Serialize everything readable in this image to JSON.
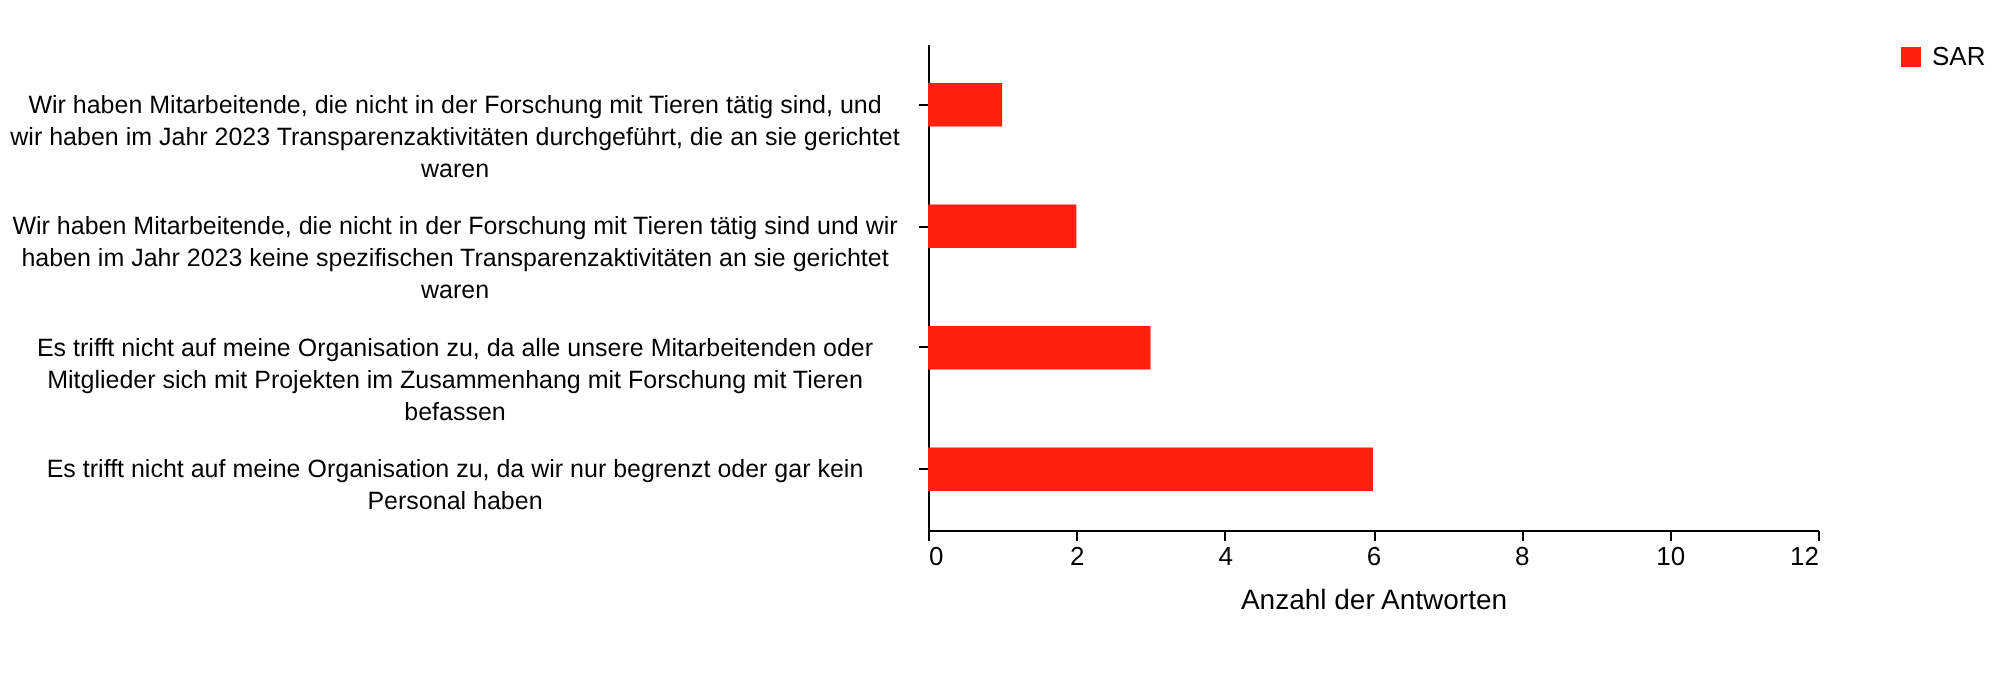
{
  "chart_data": {
    "type": "bar",
    "orientation": "horizontal",
    "categories": [
      "Wir haben Mitarbeitende, die nicht in der Forschung mit Tieren  tätig sind, und wir haben im Jahr 2023 Transparenzaktivitäten durchgeführt, die an sie gerichtet waren",
      "Wir haben Mitarbeitende, die nicht in der Forschung mit Tieren tätig sind und wir haben im Jahr 2023 keine spezifischen Transparenzaktivitäten an sie gerichtet waren",
      "Es trifft nicht auf meine Organisation zu, da alle unsere Mitarbeitenden oder Mitglieder sich mit Projekten im Zusammenhang mit Forschung mit Tieren befassen",
      "Es trifft nicht auf meine Organisation zu, da wir nur begrenzt oder gar kein Personal haben"
    ],
    "series": [
      {
        "name": "SAR",
        "color": "#ff2010",
        "values": [
          1,
          2,
          3,
          6
        ]
      }
    ],
    "xlabel": "Anzahl der Antworten",
    "xlim": [
      0,
      12
    ],
    "xticks": [
      0,
      2,
      4,
      6,
      8,
      10,
      12
    ],
    "grid": false,
    "legend": "right"
  }
}
